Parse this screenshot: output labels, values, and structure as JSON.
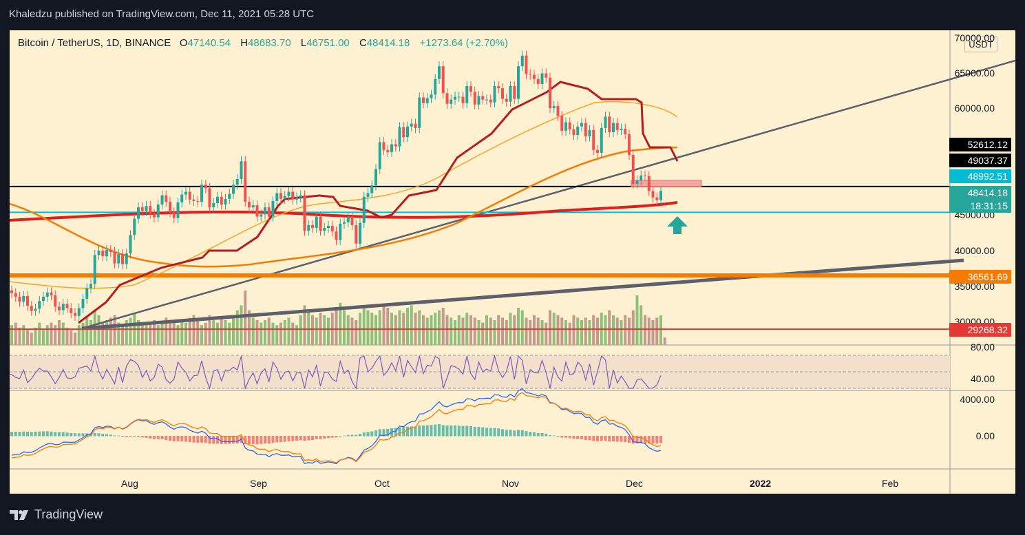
{
  "header": {
    "text": "Khaledzu published on TradingView.com, Dec 11, 2021 05:28 UTC"
  },
  "legend": {
    "symbol": "Bitcoin / TetherUS, 1D, BINANCE",
    "o_label": "O",
    "o_value": "47140.54",
    "h_label": "H",
    "h_value": "48683.70",
    "l_label": "L",
    "l_value": "46751.00",
    "c_label": "C",
    "c_value": "48414.18",
    "change": "+1273.64 (+2.70%)"
  },
  "currency_button": "USDT",
  "price_axis": {
    "labels": [
      "70000.00",
      "65000.00",
      "60000.00",
      "45000.00",
      "40000.00",
      "35000.00",
      "30000.00"
    ],
    "rsi_labels": [
      "80.00",
      "40.00"
    ],
    "macd_labels": [
      "4000.00",
      "0.00"
    ]
  },
  "price_tags": [
    {
      "value": "52612.12",
      "color": "#000000"
    },
    {
      "value": "49037.37",
      "color": "#000000"
    },
    {
      "value": "48992.51",
      "color": "#00bcd4"
    },
    {
      "value": "48414.18",
      "color": "#26a69a"
    },
    {
      "value": "18:31:15",
      "color": "#26a69a"
    },
    {
      "value": "36561.69",
      "color": "#f57c00"
    },
    {
      "value": "29268.32",
      "color": "#e53935"
    }
  ],
  "time_axis": [
    "Aug",
    "Sep",
    "Oct",
    "Nov",
    "Dec",
    "2022",
    "Feb"
  ],
  "footer": {
    "brand": "TradingView"
  },
  "colors": {
    "up": "#26a69a",
    "down": "#ef5350",
    "background": "#fdf1d2"
  },
  "chart_data": {
    "type": "candlestick",
    "title": "Bitcoin / TetherUS, 1D, BINANCE",
    "ylim": [
      29000,
      70000
    ],
    "horizontal_levels": [
      52612.12,
      49037.37,
      48992.51,
      36561.69,
      29268.32
    ],
    "last_close": 48414.18,
    "countdown": "18:31:15",
    "close_series": [
      34000,
      33500,
      32800,
      33600,
      32200,
      31500,
      31800,
      32900,
      33500,
      34100,
      33700,
      32100,
      31600,
      32500,
      31900,
      31200,
      30800,
      31900,
      33200,
      34700,
      35300,
      39400,
      40000,
      39200,
      40100,
      39800,
      38200,
      39500,
      38100,
      39600,
      42200,
      44500,
      46100,
      45600,
      46300,
      45200,
      44700,
      46500,
      47800,
      46900,
      45400,
      44600,
      46800,
      47900,
      48300,
      47200,
      47000,
      46900,
      49300,
      48800,
      46100,
      46700,
      47600,
      46500,
      47300,
      48000,
      49300,
      50100,
      52600,
      46900,
      46100,
      46400,
      44800,
      45100,
      46100,
      44800,
      47000,
      48100,
      47300,
      47700,
      48300,
      47200,
      47500,
      47800,
      42800,
      43600,
      43200,
      44800,
      42800,
      43200,
      43500,
      42700,
      41500,
      43800,
      44000,
      44800,
      43600,
      41000,
      43900,
      47600,
      48100,
      49200,
      51500,
      55300,
      54200,
      53900,
      55000,
      54700,
      57400,
      56000,
      57500,
      57900,
      57300,
      61600,
      60800,
      61500,
      62000,
      64200,
      66000,
      62200,
      60700,
      61300,
      61700,
      61700,
      60800,
      63200,
      62400,
      60600,
      61800,
      61300,
      61300,
      60900,
      63200,
      62900,
      61400,
      61000,
      63200,
      61400,
      66000,
      67500,
      64900,
      64800,
      64200,
      63500,
      65000,
      64400,
      60100,
      60400,
      59000,
      56900,
      58100,
      57100,
      56300,
      57500,
      58000,
      56100,
      57000,
      54200,
      53800,
      57300,
      58900,
      56700,
      58000,
      57000,
      57200,
      56400,
      53500,
      49400,
      49900,
      50600,
      50500,
      48400,
      47500,
      47140,
      48414
    ],
    "volume_series": [
      8,
      9,
      7,
      8,
      6,
      5,
      7,
      9,
      6,
      8,
      9,
      8,
      10,
      9,
      7,
      6,
      5,
      8,
      9,
      11,
      10,
      14,
      12,
      9,
      10,
      11,
      12,
      9,
      8,
      10,
      11,
      13,
      10,
      9,
      8,
      9,
      10,
      8,
      9,
      11,
      10,
      9,
      8,
      10,
      9,
      11,
      12,
      10,
      8,
      9,
      12,
      10,
      9,
      11,
      10,
      9,
      12,
      14,
      16,
      22,
      14,
      11,
      10,
      9,
      10,
      11,
      9,
      8,
      9,
      10,
      11,
      9,
      8,
      12,
      16,
      14,
      12,
      11,
      13,
      12,
      11,
      13,
      15,
      17,
      14,
      12,
      11,
      10,
      13,
      15,
      14,
      13,
      12,
      14,
      16,
      15,
      13,
      12,
      14,
      13,
      15,
      16,
      13,
      14,
      12,
      11,
      12,
      13,
      14,
      15,
      12,
      11,
      10,
      12,
      11,
      13,
      12,
      11,
      10,
      9,
      12,
      11,
      10,
      12,
      11,
      10,
      13,
      12,
      15,
      14,
      11,
      10,
      12,
      11,
      10,
      9,
      14,
      13,
      12,
      11,
      10,
      9,
      12,
      11,
      10,
      11,
      10,
      12,
      11,
      13,
      12,
      14,
      12,
      11,
      10,
      12,
      11,
      14,
      20,
      16,
      12,
      11,
      10,
      11,
      12,
      3
    ]
  }
}
